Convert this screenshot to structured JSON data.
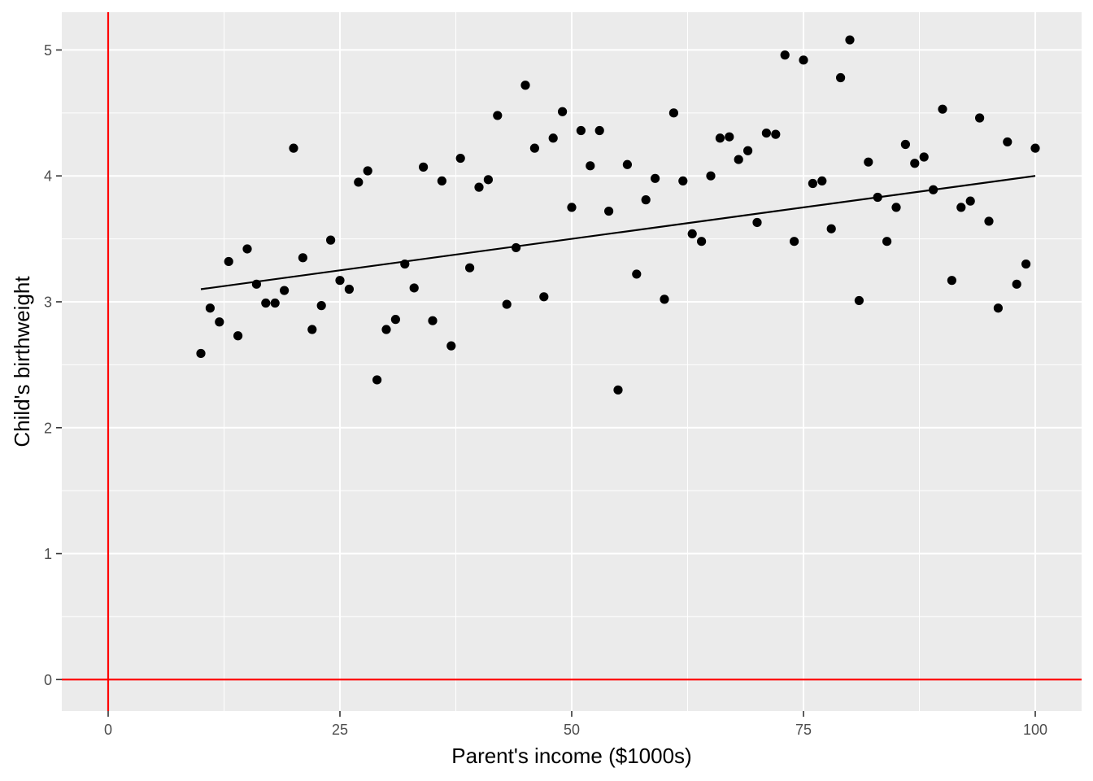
{
  "chart_data": {
    "type": "scatter",
    "xlabel": "Parent's income ($1000s)",
    "ylabel": "Child's birthweight",
    "xlim": [
      -5,
      105
    ],
    "ylim": [
      -0.25,
      5.3
    ],
    "x_ticks": [
      0,
      25,
      50,
      75,
      100
    ],
    "x_tick_labels": [
      "0",
      "25",
      "50",
      "75",
      "100"
    ],
    "y_ticks": [
      0,
      1,
      2,
      3,
      4,
      5
    ],
    "y_tick_labels": [
      "0",
      "1",
      "2",
      "3",
      "4",
      "5"
    ],
    "grid": true,
    "background_color": "#ebebeb",
    "grid_color": "#ffffff",
    "point_color": "#000000",
    "reference_line_color": "#ff0000",
    "reference_lines": {
      "x": 0,
      "y": 0
    },
    "fit_line": {
      "x": [
        10,
        100
      ],
      "y": [
        3.1,
        4.0
      ]
    },
    "points": {
      "x": [
        10,
        11,
        12,
        13,
        14,
        15,
        16,
        17,
        18,
        19,
        20,
        21,
        22,
        23,
        24,
        25,
        26,
        27,
        28,
        29,
        30,
        31,
        32,
        33,
        34,
        35,
        36,
        37,
        38,
        39,
        40,
        41,
        42,
        43,
        44,
        45,
        46,
        47,
        48,
        49,
        50,
        51,
        52,
        53,
        54,
        55,
        56,
        57,
        58,
        59,
        60,
        61,
        62,
        63,
        64,
        65,
        66,
        67,
        68,
        69,
        70,
        71,
        72,
        73,
        74,
        75,
        76,
        77,
        78,
        79,
        80,
        81,
        82,
        83,
        84,
        85,
        86,
        87,
        88,
        89,
        90,
        91,
        92,
        93,
        94,
        95,
        96,
        97,
        98,
        99,
        100
      ],
      "y": [
        2.59,
        2.95,
        2.84,
        3.32,
        2.73,
        3.42,
        3.14,
        2.99,
        2.99,
        3.09,
        4.22,
        3.35,
        2.78,
        2.97,
        3.49,
        3.17,
        3.1,
        3.95,
        4.04,
        2.38,
        2.78,
        2.86,
        3.3,
        3.11,
        4.07,
        2.85,
        3.96,
        2.65,
        4.14,
        3.27,
        3.91,
        3.97,
        4.48,
        2.98,
        3.43,
        4.72,
        4.22,
        3.04,
        4.3,
        4.51,
        3.75,
        4.36,
        4.08,
        4.36,
        3.72,
        2.3,
        4.09,
        3.22,
        3.81,
        3.98,
        3.02,
        4.5,
        3.96,
        3.54,
        3.48,
        4.0,
        4.3,
        4.31,
        4.13,
        4.2,
        3.63,
        4.34,
        4.33,
        4.96,
        3.48,
        4.92,
        3.94,
        3.96,
        3.58,
        4.78,
        5.08,
        3.01,
        4.11,
        3.83,
        3.48,
        3.75,
        4.25,
        4.1,
        4.15,
        3.89,
        4.53,
        3.17,
        3.75,
        3.8,
        4.46,
        3.64,
        2.95,
        4.27,
        3.14,
        3.3,
        4.22
      ]
    }
  }
}
